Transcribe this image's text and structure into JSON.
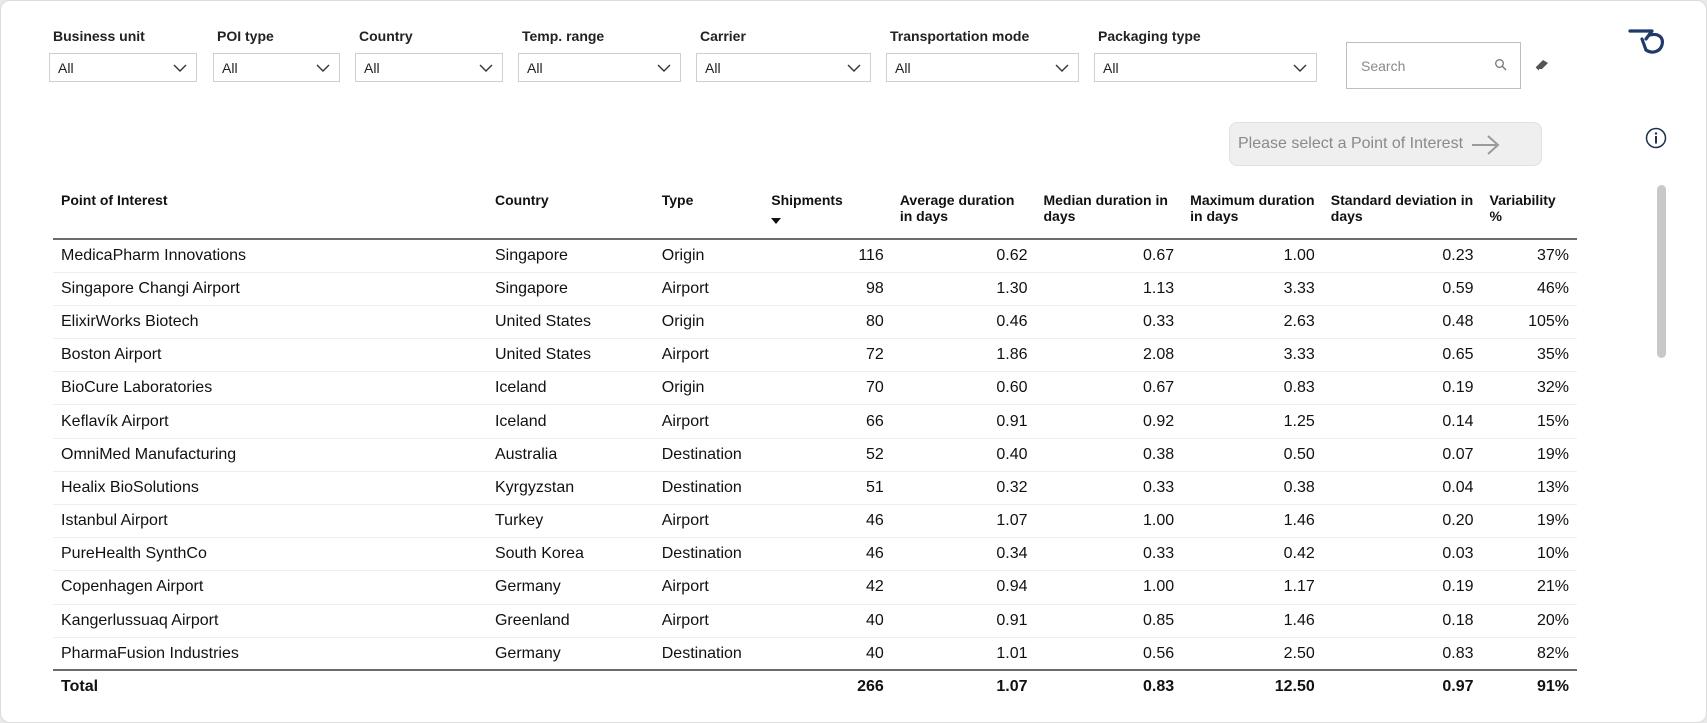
{
  "filters": [
    {
      "label": "Business unit",
      "value": "All"
    },
    {
      "label": "POI type",
      "value": "All"
    },
    {
      "label": "Country",
      "value": "All"
    },
    {
      "label": "Temp. range",
      "value": "All"
    },
    {
      "label": "Carrier",
      "value": "All"
    },
    {
      "label": "Transportation mode",
      "value": "All"
    },
    {
      "label": "Packaging type",
      "value": "All"
    }
  ],
  "search": {
    "placeholder": "Search"
  },
  "poi_button": {
    "label": "Please select a Point of Interest"
  },
  "icons": {
    "logo": "brand-logo-icon",
    "eraser": "eraser-icon",
    "search": "search-icon",
    "info": "info-icon",
    "arrow": "arrow-right-icon",
    "sort": "sort-descending-icon",
    "chevron": "chevron-down-icon"
  },
  "colors": {
    "accent": "#1f3a6b",
    "disabled_text": "#8a8a8a"
  },
  "table": {
    "columns": [
      "Point of Interest",
      "Country",
      "Type",
      "Shipments",
      "Average duration in days",
      "Median duration in days",
      "Maximum duration in days",
      "Standard deviation in days",
      "Variability %"
    ],
    "sorted_column": "Shipments",
    "rows": [
      [
        "MedicaPharm Innovations",
        "Singapore",
        "Origin",
        "116",
        "0.62",
        "0.67",
        "1.00",
        "0.23",
        "37%"
      ],
      [
        "Singapore Changi Airport",
        "Singapore",
        "Airport",
        "98",
        "1.30",
        "1.13",
        "3.33",
        "0.59",
        "46%"
      ],
      [
        "ElixirWorks Biotech",
        "United States",
        "Origin",
        "80",
        "0.46",
        "0.33",
        "2.63",
        "0.48",
        "105%"
      ],
      [
        "Boston Airport",
        "United States",
        "Airport",
        "72",
        "1.86",
        "2.08",
        "3.33",
        "0.65",
        "35%"
      ],
      [
        "BioCure Laboratories",
        "Iceland",
        "Origin",
        "70",
        "0.60",
        "0.67",
        "0.83",
        "0.19",
        "32%"
      ],
      [
        "Keflavík Airport",
        "Iceland",
        "Airport",
        "66",
        "0.91",
        "0.92",
        "1.25",
        "0.14",
        "15%"
      ],
      [
        "OmniMed Manufacturing",
        "Australia",
        "Destination",
        "52",
        "0.40",
        "0.38",
        "0.50",
        "0.07",
        "19%"
      ],
      [
        "Healix BioSolutions",
        "Kyrgyzstan",
        "Destination",
        "51",
        "0.32",
        "0.33",
        "0.38",
        "0.04",
        "13%"
      ],
      [
        "Istanbul Airport",
        "Turkey",
        "Airport",
        "46",
        "1.07",
        "1.00",
        "1.46",
        "0.20",
        "19%"
      ],
      [
        "PureHealth SynthCo",
        "South Korea",
        "Destination",
        "46",
        "0.34",
        "0.33",
        "0.42",
        "0.03",
        "10%"
      ],
      [
        "Copenhagen Airport",
        "Germany",
        "Airport",
        "42",
        "0.94",
        "1.00",
        "1.17",
        "0.19",
        "21%"
      ],
      [
        "Kangerlussuaq Airport",
        "Greenland",
        "Airport",
        "40",
        "0.91",
        "0.85",
        "1.46",
        "0.18",
        "20%"
      ],
      [
        "PharmaFusion Industries",
        "Germany",
        "Destination",
        "40",
        "1.01",
        "0.56",
        "2.50",
        "0.83",
        "82%"
      ]
    ],
    "total": [
      "Total",
      "",
      "",
      "266",
      "1.07",
      "0.83",
      "12.50",
      "0.97",
      "91%"
    ]
  }
}
